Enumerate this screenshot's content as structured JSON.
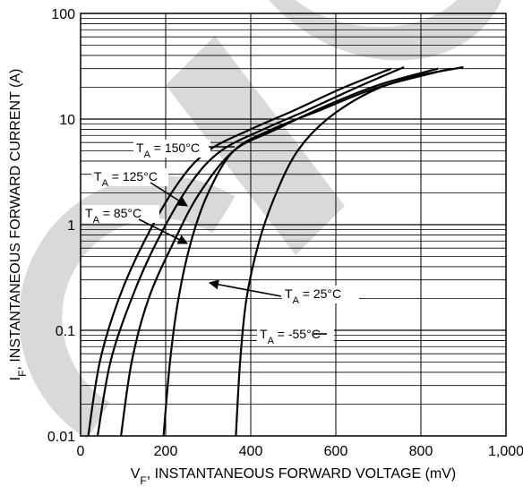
{
  "chart_data": {
    "type": "line",
    "title": "",
    "xlabel": {
      "main": "V",
      "sub": "F",
      "rest": ", INSTANTANEOUS FORWARD VOLTAGE (mV)"
    },
    "ylabel": {
      "main": "I",
      "sub": "F",
      "rest": ", INSTANTANEOUS FORWARD CURRENT (A)"
    },
    "x_scale": "linear",
    "y_scale": "log",
    "xlim": [
      0,
      1000
    ],
    "ylim": [
      0.01,
      100
    ],
    "x_ticks": [
      {
        "value": 0,
        "label": "0"
      },
      {
        "value": 200,
        "label": "200"
      },
      {
        "value": 400,
        "label": "400"
      },
      {
        "value": 600,
        "label": "600"
      },
      {
        "value": 800,
        "label": "800"
      },
      {
        "value": 1000,
        "label": "1,000"
      }
    ],
    "y_ticks": [
      {
        "value": 0.01,
        "label": "0.01"
      },
      {
        "value": 0.1,
        "label": "0.1"
      },
      {
        "value": 1,
        "label": "1"
      },
      {
        "value": 10,
        "label": "10"
      },
      {
        "value": 100,
        "label": "100"
      }
    ],
    "grid": true,
    "series": [
      {
        "name": "T_A = 150°C",
        "points": [
          [
            18,
            0.01
          ],
          [
            45,
            0.05
          ],
          [
            90,
            0.2
          ],
          [
            150,
            0.7
          ],
          [
            230,
            2.5
          ],
          [
            300,
            5
          ],
          [
            400,
            8
          ],
          [
            500,
            12
          ],
          [
            620,
            20
          ],
          [
            730,
            30
          ]
        ]
      },
      {
        "name": "T_A = 125°C",
        "points": [
          [
            40,
            0.01
          ],
          [
            70,
            0.05
          ],
          [
            120,
            0.2
          ],
          [
            180,
            0.7
          ],
          [
            260,
            2.5
          ],
          [
            330,
            5
          ],
          [
            430,
            8
          ],
          [
            530,
            12
          ],
          [
            650,
            20
          ],
          [
            760,
            31
          ]
        ]
      },
      {
        "name": "T_A = 85°C",
        "points": [
          [
            95,
            0.01
          ],
          [
            120,
            0.05
          ],
          [
            160,
            0.2
          ],
          [
            220,
            0.7
          ],
          [
            280,
            2
          ],
          [
            360,
            5
          ],
          [
            460,
            8
          ],
          [
            570,
            13
          ],
          [
            700,
            21
          ],
          [
            840,
            30
          ]
        ]
      },
      {
        "name": "T_A = 25°C",
        "points": [
          [
            195,
            0.01
          ],
          [
            210,
            0.05
          ],
          [
            230,
            0.2
          ],
          [
            260,
            0.7
          ],
          [
            300,
            2
          ],
          [
            360,
            5
          ],
          [
            450,
            8
          ],
          [
            560,
            12
          ],
          [
            700,
            20
          ],
          [
            870,
            30
          ]
        ]
      },
      {
        "name": "T_A = -55°C",
        "points": [
          [
            365,
            0.01
          ],
          [
            375,
            0.05
          ],
          [
            390,
            0.2
          ],
          [
            420,
            0.7
          ],
          [
            460,
            2
          ],
          [
            510,
            5
          ],
          [
            580,
            10
          ],
          [
            680,
            18
          ],
          [
            780,
            25
          ],
          [
            900,
            31
          ]
        ]
      }
    ],
    "annotations": [
      {
        "series": 0,
        "main": "T",
        "sub": "A",
        "rest": " = 150°C"
      },
      {
        "series": 1,
        "main": "T",
        "sub": "A",
        "rest": " = 125°C"
      },
      {
        "series": 2,
        "main": "T",
        "sub": "A",
        "rest": " = 85°C"
      },
      {
        "series": 3,
        "main": "T",
        "sub": "A",
        "rest": " = 25°C"
      },
      {
        "series": 4,
        "main": "T",
        "sub": "A",
        "rest": " = -55°C"
      }
    ]
  }
}
